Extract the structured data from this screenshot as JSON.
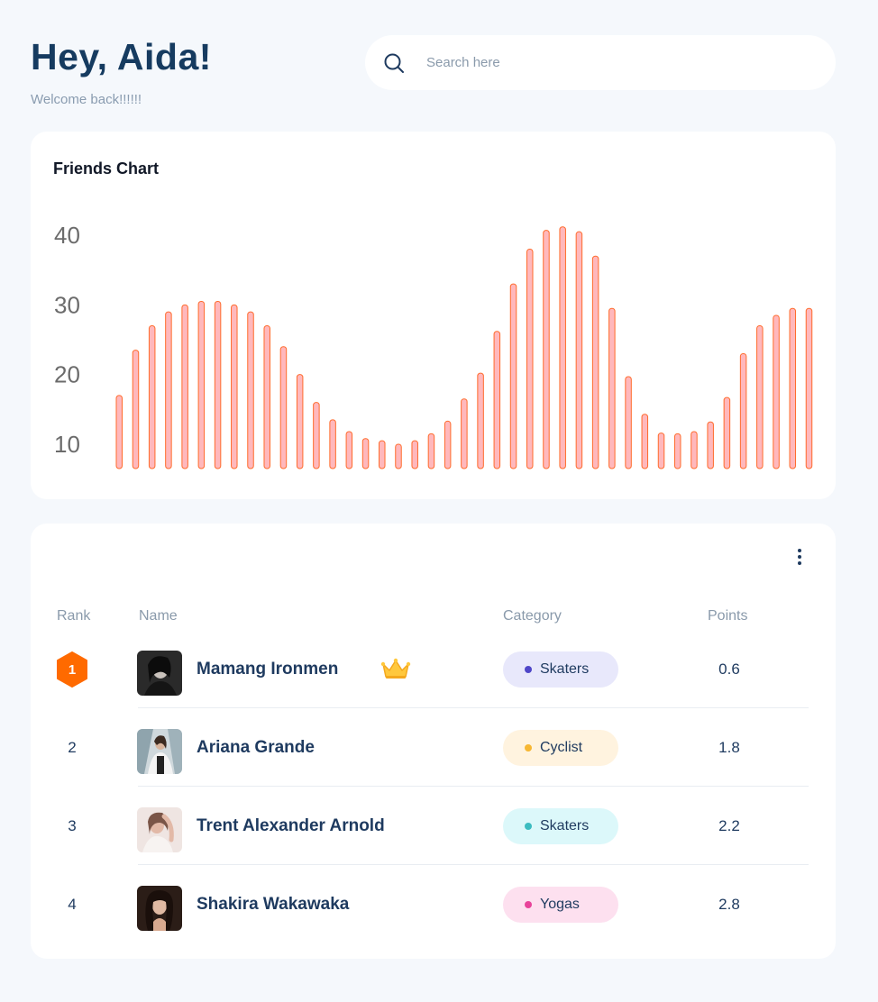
{
  "header": {
    "greeting": "Hey, Aida!",
    "subtitle": "Welcome back!!!!!!"
  },
  "search": {
    "placeholder": "Search here",
    "icon": "search-icon"
  },
  "colors": {
    "bar_fill": "#ffb8bc",
    "bar_stroke": "#ff6b2c",
    "rank_badge": "#ff6a00"
  },
  "chart_data": {
    "type": "bar",
    "title": "Friends Chart",
    "xlabel": "",
    "ylabel": "",
    "yticks": [
      10,
      20,
      30,
      40
    ],
    "ylim": [
      6.5,
      42
    ],
    "grid": false,
    "values": [
      17,
      23.5,
      27,
      29,
      30,
      30.5,
      30.5,
      30,
      29,
      27,
      24,
      20,
      16,
      13.5,
      11.8,
      10.8,
      10.5,
      10,
      10.5,
      11.5,
      13.3,
      16.5,
      20.2,
      26.2,
      33,
      38,
      40.7,
      41.2,
      40.5,
      37,
      29.5,
      19.7,
      14.3,
      11.6,
      11.5,
      11.8,
      13.2,
      16.7,
      23,
      27,
      28.5,
      29.5,
      29.5
    ]
  },
  "table": {
    "menu_icon": "more-vertical-icon",
    "headers": {
      "rank": "Rank",
      "name": "Name",
      "category": "Category",
      "points": "Points"
    },
    "rows": [
      {
        "rank": "1",
        "name": "Mamang Ironmen",
        "category": "Skaters",
        "points": "0.6",
        "pill_bg": "#e8e8fb",
        "dot": "#4f46c8",
        "crown": true
      },
      {
        "rank": "2",
        "name": "Ariana Grande",
        "category": "Cyclist",
        "points": "1.8",
        "pill_bg": "#fff3df",
        "dot": "#f7b733",
        "crown": false
      },
      {
        "rank": "3",
        "name": "Trent Alexander Arnold",
        "category": "Skaters",
        "points": "2.2",
        "pill_bg": "#dcf8fa",
        "dot": "#3cbcc0",
        "crown": false
      },
      {
        "rank": "4",
        "name": "Shakira Wakawaka",
        "category": "Yogas",
        "points": "2.8",
        "pill_bg": "#fde0ef",
        "dot": "#e8439a",
        "crown": false
      }
    ]
  }
}
